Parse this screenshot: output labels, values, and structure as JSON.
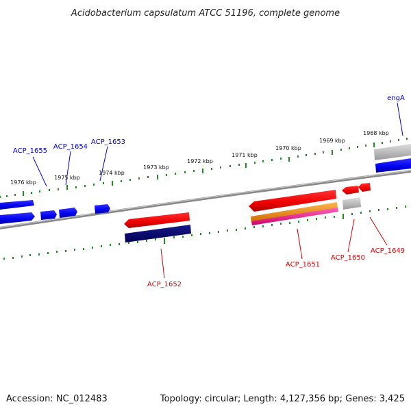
{
  "title": "Acidobacterium capsulatum ATCC 51196, complete genome",
  "footer": {
    "accession": "Accession: NC_012483",
    "summary": "Topology: circular; Length: 4,127,356 bp; Genes: 3,425"
  },
  "scale_labels": [
    "1976 kbp",
    "1975 kbp",
    "1974 kbp",
    "1973 kbp",
    "1972 kbp",
    "1971 kbp",
    "1970 kbp",
    "1969 kbp",
    "1968 kbp"
  ],
  "gene_labels": {
    "forward": [
      "ACP_1655",
      "ACP_1654",
      "ACP_1653",
      "engA"
    ],
    "reverse": [
      "ACP_1652",
      "ACP_1651",
      "ACP_1650",
      "ACP_1649"
    ]
  },
  "colors": {
    "forward_cds": "#0000ff",
    "reverse_cds": "#ff0000",
    "pseudo": "#bbbbbb",
    "dark_feature": "#000080",
    "orange_feature": "#ff9900",
    "pink_feature": "#ff3399",
    "backbone": "#888888",
    "ticks": "#228b22"
  }
}
